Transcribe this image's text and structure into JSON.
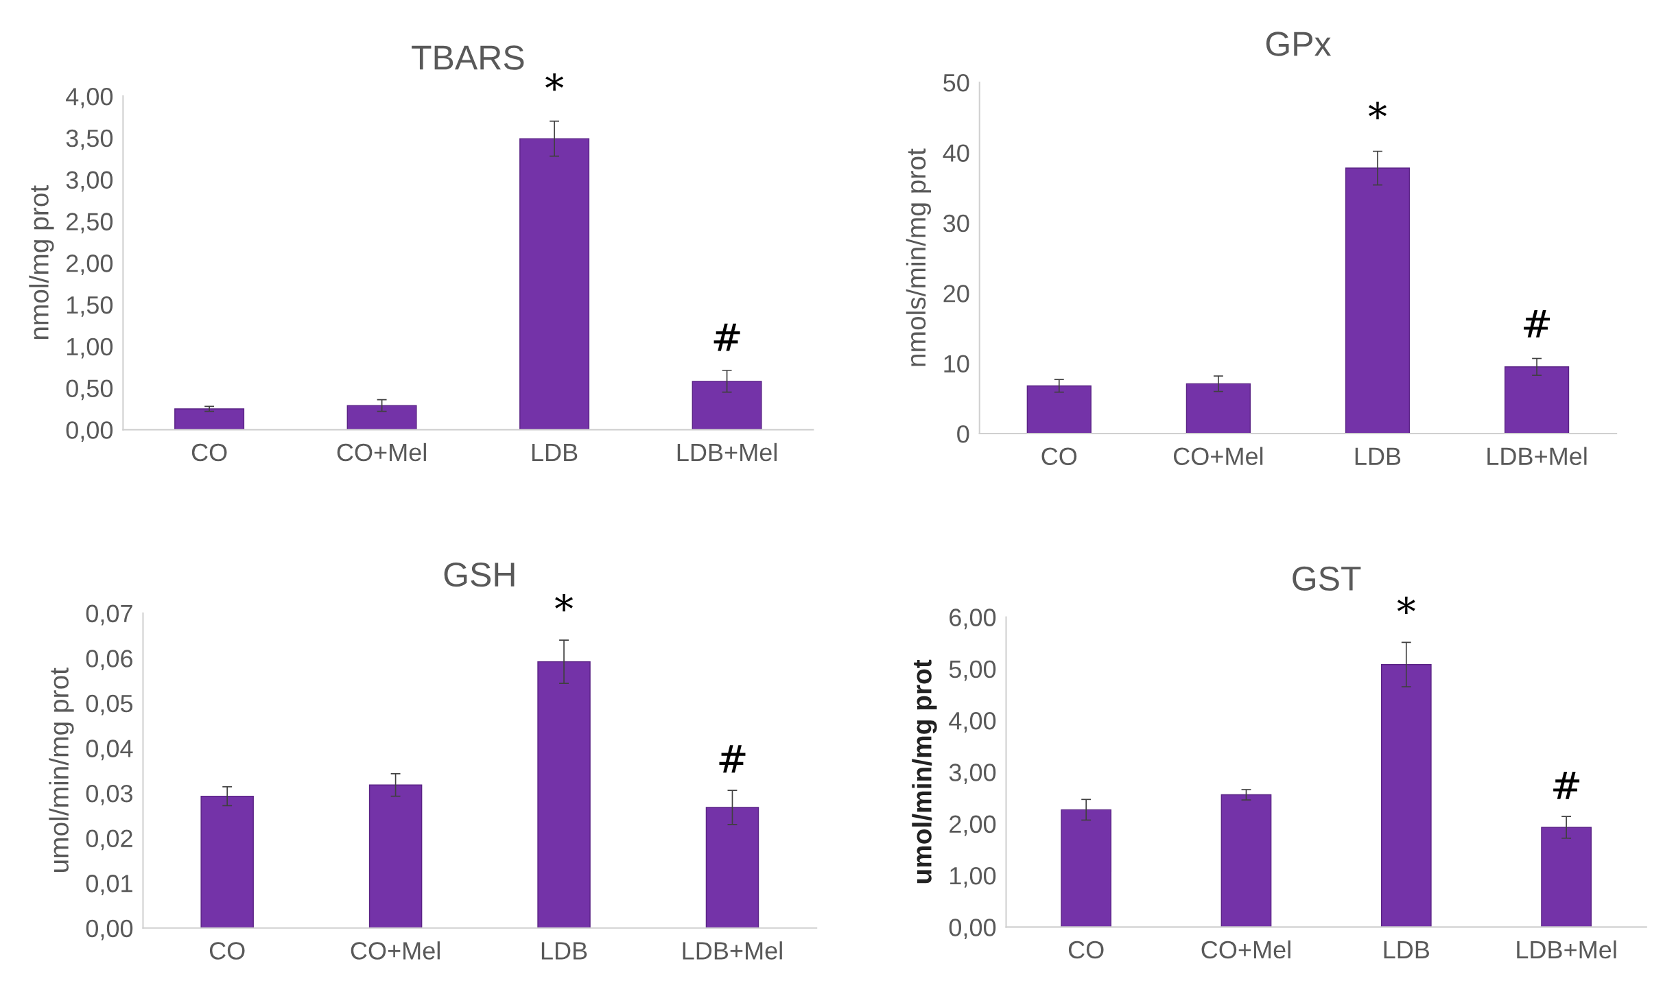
{
  "chart_data": [
    {
      "type": "bar",
      "title": "TBARS",
      "ylabel": "nmol/mg prot",
      "categories": [
        "CO",
        "CO+Mel",
        "LDB",
        "LDB+Mel"
      ],
      "color": "#7433a8",
      "values": [
        0.25,
        0.29,
        3.49,
        0.58
      ],
      "errors": [
        0.03,
        0.07,
        0.21,
        0.13
      ],
      "ylim": [
        0,
        4
      ],
      "yticks": [
        {
          "value": 0,
          "label": "0,00"
        },
        {
          "value": 0.5,
          "label": "0,50"
        },
        {
          "value": 1,
          "label": "1,00"
        },
        {
          "value": 1.5,
          "label": "1,50"
        },
        {
          "value": 2,
          "label": "2,00"
        },
        {
          "value": 2.5,
          "label": "2,50"
        },
        {
          "value": 3,
          "label": "3,00"
        },
        {
          "value": 3.5,
          "label": "3,50"
        },
        {
          "value": 4,
          "label": "4,00"
        }
      ],
      "grid": false,
      "legend": false,
      "annotations": [
        "*",
        "#"
      ]
    },
    {
      "type": "bar",
      "title": "GPx",
      "ylabel": "nmols/min/mg prot",
      "categories": [
        "CO",
        "CO+Mel",
        "LDB",
        "LDB+Mel"
      ],
      "color": "#7433a8",
      "values": [
        6.8,
        7.1,
        37.8,
        9.5
      ],
      "errors": [
        0.9,
        1.1,
        2.4,
        1.2
      ],
      "ylim": [
        0,
        50
      ],
      "yticks": [
        0,
        10,
        20,
        30,
        40,
        50
      ],
      "grid": false,
      "legend": false,
      "annotations": [
        "*",
        "#"
      ]
    },
    {
      "type": "bar",
      "title": "GSH",
      "ylabel": "umol/min/mg prot",
      "categories": [
        "CO",
        "CO+Mel",
        "LDB",
        "LDB+Mel"
      ],
      "color": "#7433a8",
      "values": [
        0.0293,
        0.0318,
        0.0592,
        0.0268
      ],
      "errors": [
        0.0021,
        0.0025,
        0.0048,
        0.0038
      ],
      "ylim": [
        0,
        0.07
      ],
      "yticks": [
        {
          "value": 0,
          "label": "0,00"
        },
        {
          "value": 0.01,
          "label": "0,01"
        },
        {
          "value": 0.02,
          "label": "0,02"
        },
        {
          "value": 0.03,
          "label": "0,03"
        },
        {
          "value": 0.04,
          "label": "0,04"
        },
        {
          "value": 0.05,
          "label": "0,05"
        },
        {
          "value": 0.06,
          "label": "0,06"
        },
        {
          "value": 0.07,
          "label": "0,07"
        }
      ],
      "grid": false,
      "legend": false,
      "annotations": [
        "*",
        "#"
      ]
    },
    {
      "type": "bar",
      "title": "GST",
      "ylabel": "umol/min/mg prot",
      "categories": [
        "CO",
        "CO+Mel",
        "LDB",
        "LDB+Mel"
      ],
      "color": "#7433a8",
      "values": [
        2.27,
        2.56,
        5.08,
        1.93
      ],
      "errors": [
        0.2,
        0.1,
        0.43,
        0.21
      ],
      "ylim": [
        0,
        6
      ],
      "yticks": [
        {
          "value": 0,
          "label": "0,00"
        },
        {
          "value": 1,
          "label": "1,00"
        },
        {
          "value": 2,
          "label": "2,00"
        },
        {
          "value": 3,
          "label": "3,00"
        },
        {
          "value": 4,
          "label": "4,00"
        },
        {
          "value": 5,
          "label": "5,00"
        },
        {
          "value": 6,
          "label": "6,00"
        }
      ],
      "grid": false,
      "legend": false,
      "annotations": [
        "*",
        "#"
      ]
    }
  ]
}
